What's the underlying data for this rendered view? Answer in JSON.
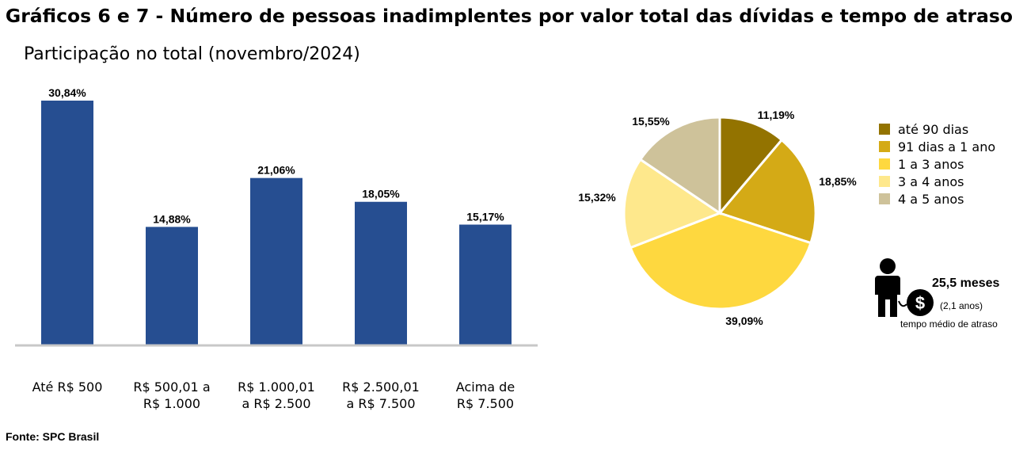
{
  "title": "Gráficos 6 e 7 - Número de pessoas inadimplentes por valor total das dívidas e tempo de atraso",
  "subtitle": "Participação no total (novembro/2024)",
  "source": "Fonte: SPC Brasil",
  "chart_data": [
    {
      "type": "bar",
      "categories": [
        [
          "Até R$ 500"
        ],
        [
          "R$ 500,01 a",
          "R$ 1.000"
        ],
        [
          "R$ 1.000,01",
          "a R$ 2.500"
        ],
        [
          "R$ 2.500,01",
          "a R$ 7.500"
        ],
        [
          "Acima de",
          "R$ 7.500"
        ]
      ],
      "values": [
        30.84,
        14.88,
        21.06,
        18.05,
        15.17
      ],
      "value_labels": [
        "30,84%",
        "14,88%",
        "21,06%",
        "18,05%",
        "15,17%"
      ],
      "ylim": [
        0,
        31.5
      ],
      "color": "#264e91",
      "grid": false,
      "legend": "none"
    },
    {
      "type": "pie",
      "categories": [
        "até 90 dias",
        "91 dias a 1 ano",
        "1 a 3 anos",
        "3 a 4 anos",
        "4 a 5 anos"
      ],
      "values": [
        11.19,
        18.85,
        39.09,
        15.32,
        15.55
      ],
      "value_labels": [
        "11,19%",
        "18,85%",
        "39,09%",
        "15,32%",
        "15,55%"
      ],
      "colors": [
        "#937300",
        "#d4aa16",
        "#fed83f",
        "#fee88c",
        "#cec29a"
      ],
      "legend": "right"
    }
  ],
  "info": {
    "value": "25,5 meses",
    "years": "(2,1 anos)",
    "description": "tempo médio de atraso",
    "icons": [
      "person-icon",
      "dollar-coin-icon"
    ]
  }
}
